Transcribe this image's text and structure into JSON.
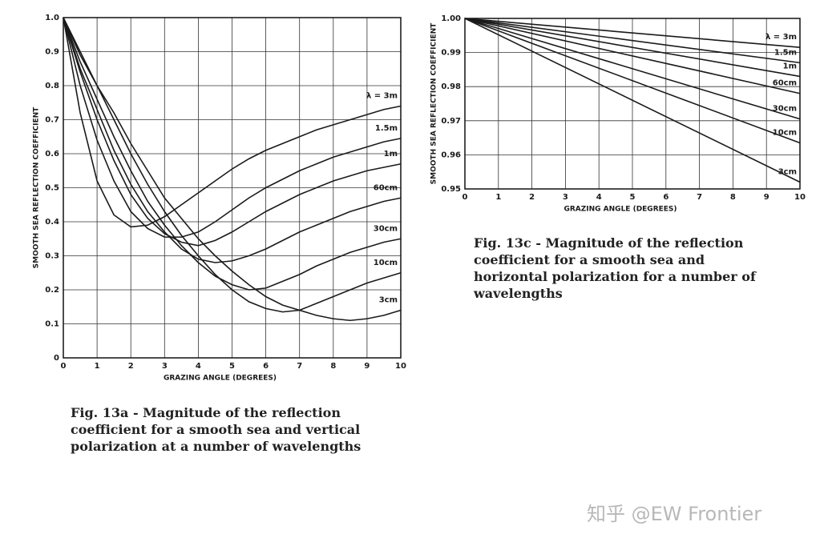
{
  "chart_data": [
    {
      "type": "line",
      "x_label": "GRAZING ANGLE (DEGREES)",
      "y_label": "SMOOTH SEA REFLECTION COEFFICIENT",
      "caption": "Fig. 13a - Magnitude of the reflection coefficient for a smooth sea and vertical polarization at a number of wavelengths",
      "x": [
        0,
        0.5,
        1,
        1.5,
        2,
        2.5,
        3,
        3.5,
        4,
        4.5,
        5,
        5.5,
        6,
        6.5,
        7,
        7.5,
        8,
        8.5,
        9,
        9.5,
        10
      ],
      "xlim": [
        0,
        10
      ],
      "xticks": [
        0,
        1,
        2,
        3,
        4,
        5,
        6,
        7,
        8,
        9,
        10
      ],
      "ylim": [
        0,
        1
      ],
      "yticks": [
        0,
        0.1,
        0.2,
        0.3,
        0.4,
        0.5,
        0.6,
        0.7,
        0.8,
        0.9,
        {
          "value": 1,
          "label": "1.0"
        }
      ],
      "grid": true,
      "series": [
        {
          "name": "λ = 3m",
          "color": "#1a1a1a",
          "values": [
            1,
            0.72,
            0.52,
            0.42,
            0.385,
            0.39,
            0.415,
            0.45,
            0.485,
            0.52,
            0.555,
            0.585,
            0.61,
            0.63,
            0.65,
            0.67,
            0.685,
            0.7,
            0.715,
            0.73,
            0.74
          ]
        },
        {
          "name": "1.5m",
          "color": "#1a1a1a",
          "values": [
            1,
            0.8,
            0.64,
            0.52,
            0.43,
            0.38,
            0.355,
            0.355,
            0.37,
            0.4,
            0.435,
            0.47,
            0.5,
            0.525,
            0.55,
            0.57,
            0.59,
            0.605,
            0.62,
            0.635,
            0.645
          ]
        },
        {
          "name": "1m",
          "color": "#1a1a1a",
          "values": [
            1,
            0.84,
            0.7,
            0.58,
            0.48,
            0.41,
            0.365,
            0.34,
            0.33,
            0.345,
            0.37,
            0.4,
            0.43,
            0.455,
            0.48,
            0.5,
            0.52,
            0.535,
            0.55,
            0.56,
            0.57
          ]
        },
        {
          "name": "60cm",
          "color": "#1a1a1a",
          "values": [
            1,
            0.85,
            0.73,
            0.61,
            0.51,
            0.43,
            0.37,
            0.32,
            0.29,
            0.28,
            0.285,
            0.3,
            0.32,
            0.345,
            0.37,
            0.39,
            0.41,
            0.43,
            0.445,
            0.46,
            0.47
          ]
        },
        {
          "name": "30cm",
          "color": "#1a1a1a",
          "values": [
            1,
            0.87,
            0.76,
            0.65,
            0.55,
            0.46,
            0.39,
            0.33,
            0.28,
            0.24,
            0.215,
            0.2,
            0.205,
            0.225,
            0.245,
            0.27,
            0.29,
            0.31,
            0.325,
            0.34,
            0.35
          ]
        },
        {
          "name": "10cm",
          "color": "#1a1a1a",
          "values": [
            1,
            0.89,
            0.8,
            0.7,
            0.6,
            0.51,
            0.43,
            0.36,
            0.3,
            0.245,
            0.2,
            0.165,
            0.145,
            0.135,
            0.14,
            0.16,
            0.18,
            0.2,
            0.22,
            0.235,
            0.25
          ]
        },
        {
          "name": "3cm",
          "color": "#1a1a1a",
          "values": [
            1,
            0.9,
            0.8,
            0.72,
            0.63,
            0.55,
            0.47,
            0.41,
            0.35,
            0.3,
            0.255,
            0.215,
            0.18,
            0.155,
            0.14,
            0.125,
            0.115,
            0.11,
            0.115,
            0.125,
            0.14
          ]
        }
      ]
    },
    {
      "type": "line",
      "x_label": "GRAZING ANGLE (DEGREES)",
      "y_label": "SMOOTH SEA REFLECTION COEFFICIENT",
      "caption": "Fig. 13c - Magnitude of the reflection coefficient for a smooth sea and horizontal polarization for a number of wavelengths",
      "x": [
        0,
        10
      ],
      "xlim": [
        0,
        10
      ],
      "xticks": [
        0,
        1,
        2,
        3,
        4,
        5,
        6,
        7,
        8,
        9,
        10
      ],
      "ylim": [
        0.95,
        1
      ],
      "yticks": [
        0.95,
        0.96,
        0.97,
        0.98,
        0.99,
        {
          "value": 1,
          "label": "1.00"
        }
      ],
      "grid": true,
      "series": [
        {
          "name": "λ = 3m",
          "color": "#1a1a1a",
          "values": [
            1,
            0.9915
          ]
        },
        {
          "name": "1.5m",
          "color": "#1a1a1a",
          "values": [
            1,
            0.987
          ]
        },
        {
          "name": "1m",
          "color": "#1a1a1a",
          "values": [
            1,
            0.983
          ]
        },
        {
          "name": "60cm",
          "color": "#1a1a1a",
          "values": [
            1,
            0.978
          ]
        },
        {
          "name": "30cm",
          "color": "#1a1a1a",
          "values": [
            1,
            0.9705
          ]
        },
        {
          "name": "10cm",
          "color": "#1a1a1a",
          "values": [
            1,
            0.9635
          ]
        },
        {
          "name": "3cm",
          "color": "#1a1a1a",
          "values": [
            1,
            0.952
          ]
        }
      ]
    }
  ],
  "watermark": "知乎 @EW Frontier"
}
